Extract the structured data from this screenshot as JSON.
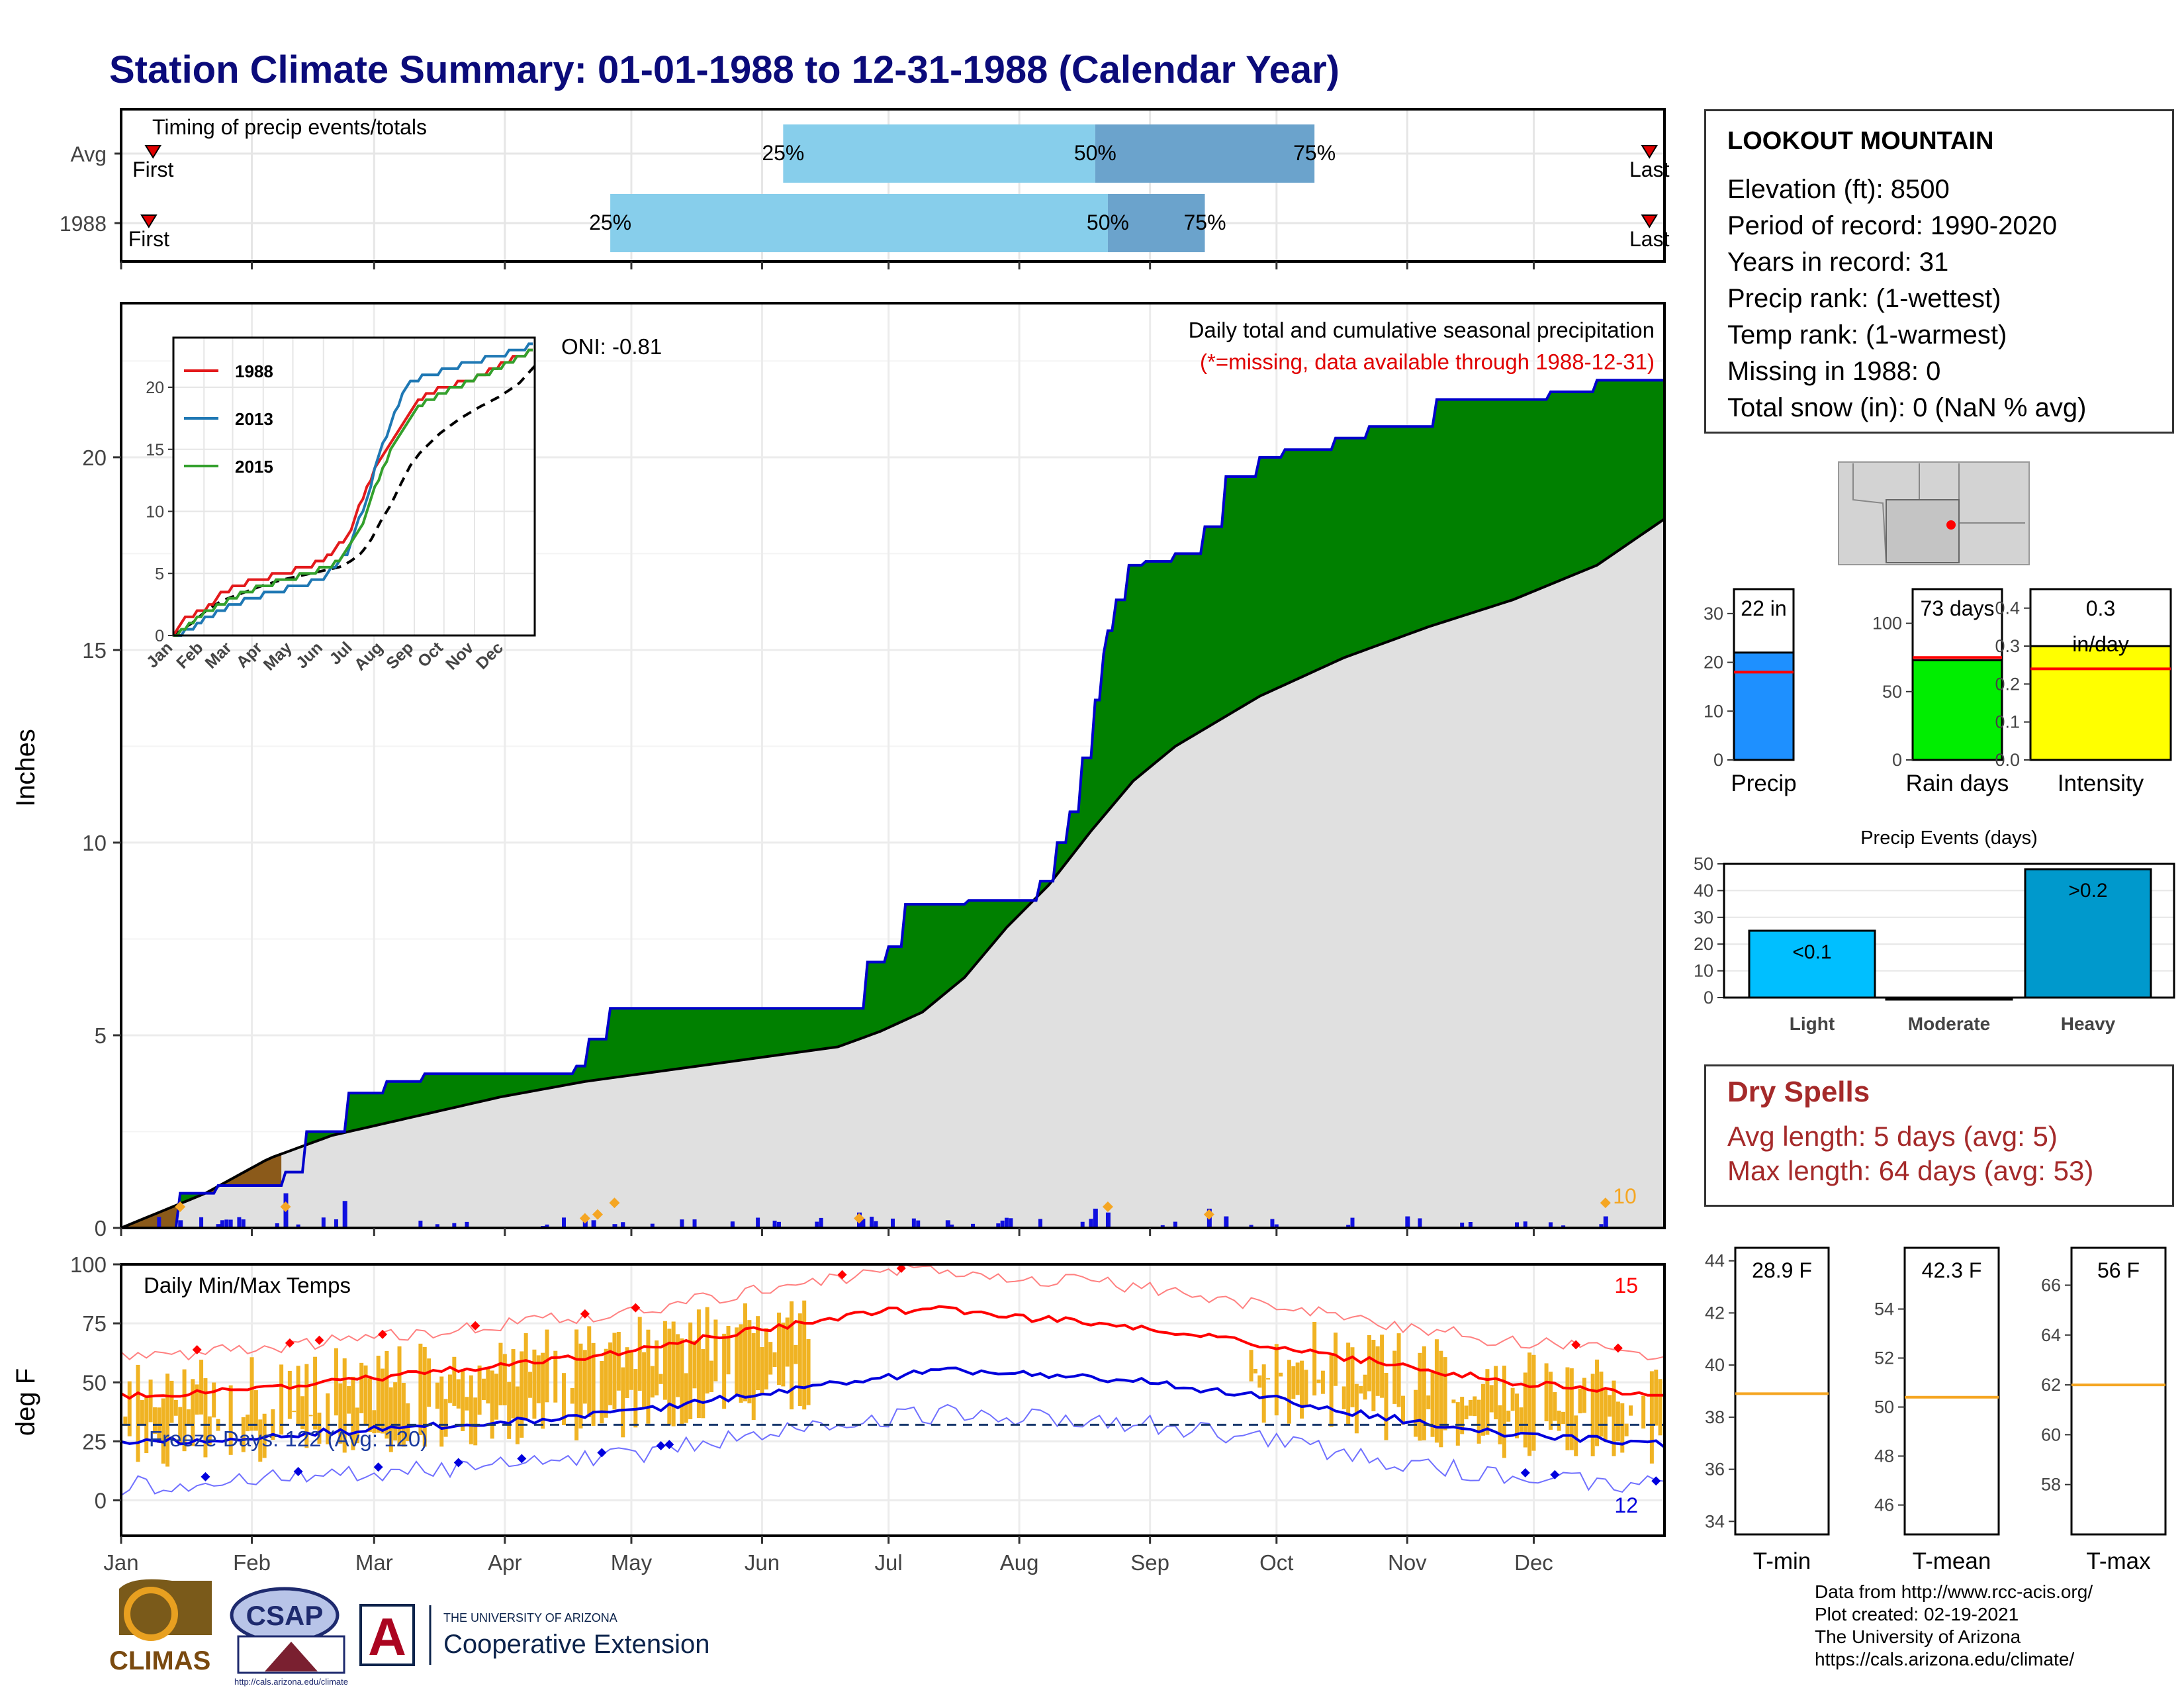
{
  "title": "Station Climate Summary: 01-01-1988 to 12-31-1988 (Calendar Year)",
  "months": [
    "Jan",
    "Feb",
    "Mar",
    "Apr",
    "May",
    "Jun",
    "Jul",
    "Aug",
    "Sep",
    "Oct",
    "Nov",
    "Dec"
  ],
  "colors": {
    "title": "#0b0b7a",
    "green": "#008000",
    "grey_area": "#e0e0e0",
    "brown": "#8b5a1a",
    "blue_bar": "#1010e0",
    "orange": "#f5a623",
    "red": "#ff0000",
    "blue_line": "#0000dd",
    "light_blue": "#87ceeb",
    "steel_blue": "#6ba3cc"
  },
  "timing": {
    "label": "Timing of precip events/totals",
    "rows": [
      {
        "name": "Avg",
        "first_doy": 6,
        "p25": 157,
        "p50": 231,
        "p75": 283,
        "last_doy": 364,
        "first_label": "First",
        "last_label": "Last",
        "p25_label": "25%",
        "p50_label": "50%",
        "p75_label": "75%"
      },
      {
        "name": "1988",
        "first_doy": 5,
        "p25": 116,
        "p50": 234,
        "p75": 257,
        "last_doy": 364,
        "first_label": "First",
        "last_label": "Last",
        "p25_label": "25%",
        "p50_label": "50%",
        "p75_label": "75%"
      }
    ]
  },
  "precip": {
    "ylabel": "Inches",
    "annotation_title": "Daily total and cumulative seasonal precipitation",
    "annotation_missing": "(*=missing, data available through 1988-12-31)",
    "oni": "ONI: -0.81",
    "count_label": "10",
    "yticks": [
      0,
      5,
      10,
      15,
      20
    ],
    "ylim": [
      0,
      24
    ],
    "inset": {
      "yticks": [
        0,
        5,
        10,
        15,
        20
      ],
      "legend": [
        {
          "name": "1988",
          "color": "#e31a1c"
        },
        {
          "name": "2013",
          "color": "#1f78b4"
        },
        {
          "name": "2015",
          "color": "#33a02c"
        }
      ]
    }
  },
  "temps": {
    "ylabel": "deg F",
    "label": "Daily Min/Max Temps",
    "freeze_text": "Freeze Days: 122 (Avg: 120)",
    "count_max": "15",
    "count_min": "12",
    "yticks": [
      0,
      25,
      50,
      75,
      100
    ],
    "ylim": [
      -15,
      100
    ]
  },
  "station": {
    "name": "LOOKOUT MOUNTAIN",
    "lines": [
      "Elevation (ft): 8500",
      "Period of record: 1990-2020",
      "Years in record: 31",
      "Precip rank:  (1-wettest)",
      "Temp rank:  (1-warmest)",
      "Missing in 1988: 0",
      "Total snow (in): 0 (NaN % avg)"
    ]
  },
  "mini_bars": [
    {
      "label": "Precip",
      "value_text": "22 in",
      "value": 22,
      "avg": 18,
      "ymax": 35,
      "ticks": [
        0,
        10,
        20,
        30
      ],
      "color": "#1e90ff"
    },
    {
      "label": "Rain days",
      "value_text": "73 days",
      "value": 73,
      "avg": 75,
      "ymax": 125,
      "ticks": [
        0,
        50,
        100
      ],
      "color": "#00ee00"
    },
    {
      "label": "Intensity",
      "value_text": "0.3\nin/day",
      "value": 0.3,
      "avg": 0.24,
      "ymax": 0.45,
      "ticks": [
        0.0,
        0.1,
        0.2,
        0.3,
        0.4
      ],
      "color": "#ffff00"
    }
  ],
  "precip_events": {
    "title": "Precip Events (days)",
    "categories": [
      "Light",
      "Moderate",
      "Heavy"
    ],
    "labels": [
      "<0.1",
      "",
      ">0.2"
    ],
    "values": [
      25,
      0,
      48
    ],
    "yticks": [
      0,
      10,
      20,
      30,
      40,
      50
    ],
    "colors": [
      "#00bfff",
      "#00aadd",
      "#0099cc"
    ]
  },
  "dry_spells": {
    "title": "Dry Spells",
    "avg_line": "Avg length: 5 days (avg: 5)",
    "max_line": "Max length: 64 days (avg: 53)"
  },
  "temp_bars": [
    {
      "label": "T-min",
      "value_text": "28.9 F",
      "avg": 38.9,
      "ymin": 33.5,
      "ymax": 44.5,
      "ticks": [
        34,
        36,
        38,
        40,
        42,
        44
      ]
    },
    {
      "label": "T-mean",
      "value_text": "42.3 F",
      "avg": 50.4,
      "ymin": 44.8,
      "ymax": 56.5,
      "ticks": [
        46,
        48,
        50,
        52,
        54
      ]
    },
    {
      "label": "T-max",
      "value_text": "56 F",
      "avg": 62,
      "ymin": 56,
      "ymax": 67.5,
      "ticks": [
        58,
        60,
        62,
        64,
        66
      ]
    }
  ],
  "credits": [
    "Data from http://www.rcc-acis.org/",
    "Plot created: 02-19-2021",
    "The University of Arizona",
    "https://cals.arizona.edu/climate/"
  ],
  "logos": {
    "climas": "CLIMAS",
    "csap": "CSAP",
    "csap_url": "http://cals.arizona.edu/climate",
    "ua_small": "THE UNIVERSITY OF ARIZONA",
    "ua_big": "Cooperative Extension",
    "ua_letter": "A"
  },
  "chart_data": [
    {
      "type": "area",
      "title": "Daily total and cumulative seasonal precipitation",
      "ylabel": "Inches",
      "x_unit": "day of year 1988",
      "ylim": [
        0,
        24
      ],
      "series": [
        {
          "name": "1988",
          "x": [
            0,
            14,
            23,
            39,
            44,
            54,
            63,
            72,
            100,
            108,
            111,
            116,
            150,
            157,
            175,
            177,
            182,
            186,
            201,
            218,
            222,
            225,
            228,
            231,
            233,
            234,
            236,
            239,
            243,
            250,
            257,
            262,
            270,
            276,
            288,
            296,
            312,
            339,
            350,
            364,
            366
          ],
          "y": [
            0,
            0.9,
            1.1,
            1.45,
            2.5,
            3.5,
            3.8,
            4.0,
            4.0,
            4.2,
            4.9,
            5.7,
            5.7,
            5.7,
            5.7,
            6.9,
            7.3,
            8.4,
            8.5,
            9.0,
            10.0,
            10.8,
            12.2,
            13.7,
            14.9,
            15.5,
            16.3,
            17.2,
            17.3,
            17.5,
            18.2,
            19.5,
            20.0,
            20.2,
            20.5,
            20.8,
            21.5,
            21.7,
            22.0,
            22.0,
            22.0
          ]
        },
        {
          "name": "Avg",
          "x": [
            0,
            20,
            35,
            50,
            70,
            90,
            110,
            130,
            150,
            170,
            180,
            190,
            200,
            210,
            220,
            230,
            240,
            250,
            270,
            290,
            310,
            330,
            350,
            366
          ],
          "y": [
            0,
            0.9,
            1.8,
            2.4,
            2.9,
            3.4,
            3.8,
            4.1,
            4.4,
            4.7,
            5.1,
            5.6,
            6.5,
            7.8,
            8.9,
            10.3,
            11.6,
            12.5,
            13.8,
            14.8,
            15.6,
            16.3,
            17.2,
            18.4
          ]
        }
      ],
      "daily_precip": {
        "x": [
          14,
          23,
          39,
          53,
          100,
          110,
          112,
          117,
          175,
          196,
          231,
          234,
          258,
          262,
          305,
          352
        ],
        "y": [
          0.2,
          0.1,
          0.9,
          0.7,
          0.05,
          0.25,
          0.2,
          0.1,
          0.4,
          0.2,
          0.5,
          0.4,
          0.5,
          0.3,
          0.3,
          0.3
        ]
      }
    },
    {
      "type": "line",
      "title": "Daily Min/Max Temps",
      "ylabel": "deg F",
      "ylim": [
        -15,
        100
      ],
      "x_unit": "day of year 1988",
      "series": [
        {
          "name": "Avg max",
          "x": [
            0,
            30,
            60,
            90,
            120,
            150,
            180,
            196,
            210,
            240,
            270,
            300,
            330,
            366
          ],
          "y": [
            44,
            47,
            52,
            57,
            63,
            72,
            80,
            81,
            78,
            74,
            66,
            58,
            50,
            45
          ]
        },
        {
          "name": "Avg min",
          "x": [
            0,
            30,
            60,
            90,
            120,
            150,
            180,
            196,
            210,
            240,
            270,
            300,
            330,
            366
          ],
          "y": [
            24,
            27,
            30,
            33,
            37,
            45,
            52,
            55,
            54,
            51,
            44,
            35,
            28,
            24
          ]
        },
        {
          "name": "Freeze",
          "x": [
            0,
            366
          ],
          "y": [
            32,
            32
          ]
        }
      ]
    },
    {
      "type": "bar",
      "title": "Precip Events (days)",
      "categories": [
        "Light",
        "Moderate",
        "Heavy"
      ],
      "values": [
        25,
        0,
        48
      ]
    }
  ]
}
